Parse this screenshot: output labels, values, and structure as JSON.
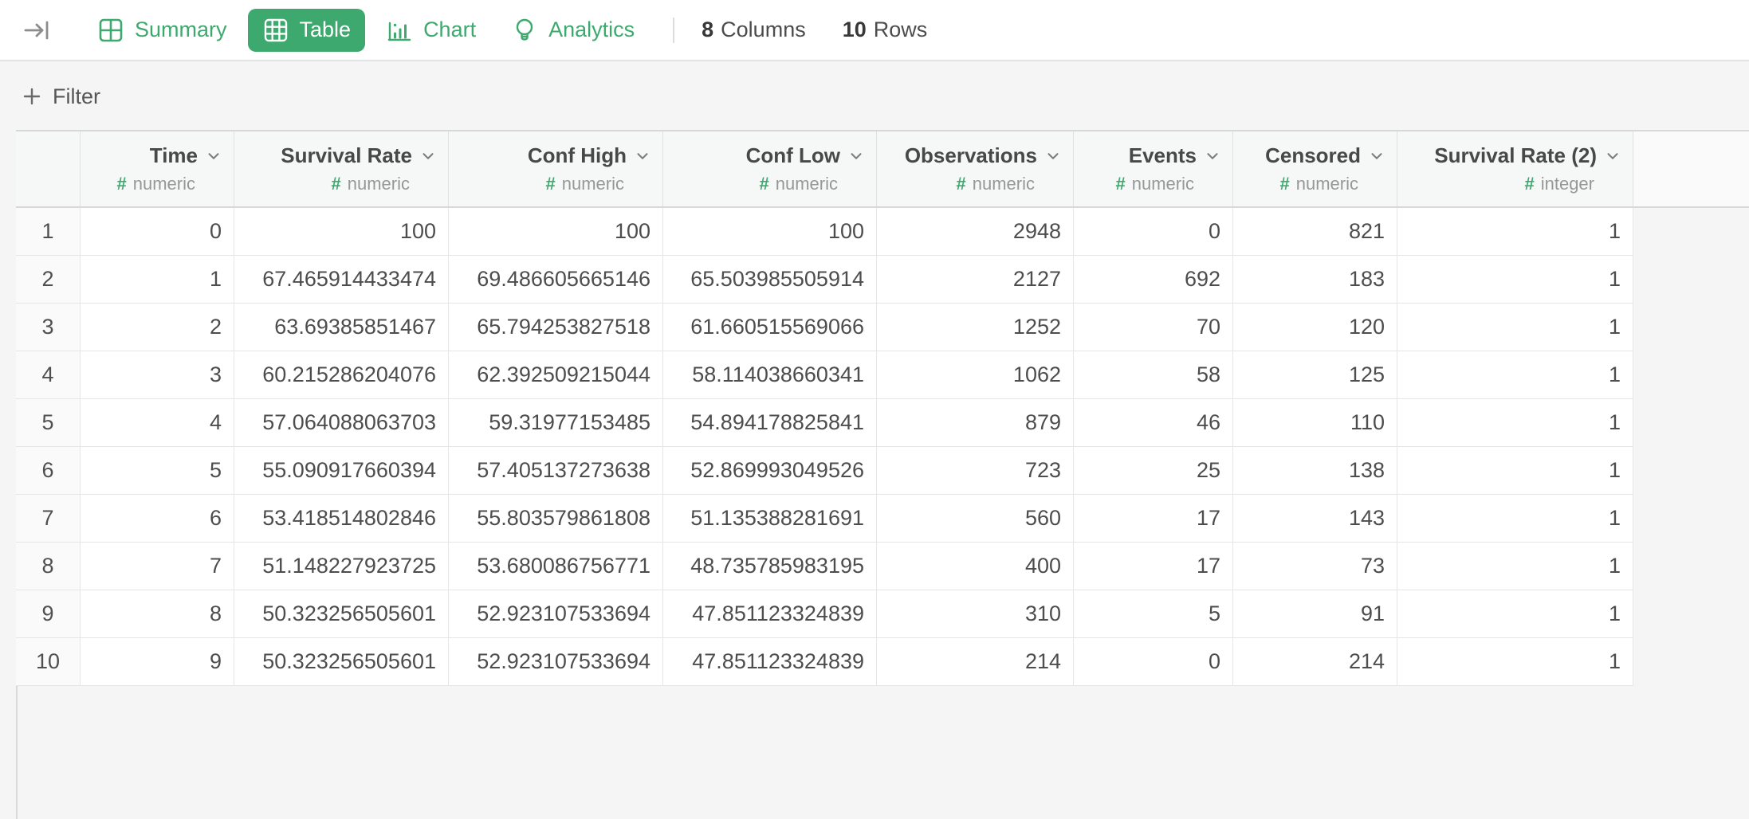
{
  "accent_color": "#3ea96e",
  "toolbar": {
    "tabs": [
      {
        "label": "Summary",
        "icon": "grid-2x2-icon",
        "active": false
      },
      {
        "label": "Table",
        "icon": "grid-3x3-icon",
        "active": true
      },
      {
        "label": "Chart",
        "icon": "bar-chart-icon",
        "active": false
      },
      {
        "label": "Analytics",
        "icon": "lightbulb-icon",
        "active": false
      }
    ],
    "stats": {
      "columns": {
        "value": "8",
        "label": "Columns"
      },
      "rows": {
        "value": "10",
        "label": "Rows"
      }
    }
  },
  "filter": {
    "label": "Filter"
  },
  "table": {
    "columns": [
      {
        "label": "Time",
        "type": "numeric"
      },
      {
        "label": "Survival Rate",
        "type": "numeric"
      },
      {
        "label": "Conf High",
        "type": "numeric"
      },
      {
        "label": "Conf Low",
        "type": "numeric"
      },
      {
        "label": "Observations",
        "type": "numeric"
      },
      {
        "label": "Events",
        "type": "numeric"
      },
      {
        "label": "Censored",
        "type": "numeric"
      },
      {
        "label": "Survival Rate (2)",
        "type": "integer"
      }
    ],
    "rows": [
      {
        "n": "1",
        "cells": [
          "0",
          "100",
          "100",
          "100",
          "2948",
          "0",
          "821",
          "1"
        ]
      },
      {
        "n": "2",
        "cells": [
          "1",
          "67.465914433474",
          "69.486605665146",
          "65.503985505914",
          "2127",
          "692",
          "183",
          "1"
        ]
      },
      {
        "n": "3",
        "cells": [
          "2",
          "63.69385851467",
          "65.794253827518",
          "61.660515569066",
          "1252",
          "70",
          "120",
          "1"
        ]
      },
      {
        "n": "4",
        "cells": [
          "3",
          "60.215286204076",
          "62.392509215044",
          "58.114038660341",
          "1062",
          "58",
          "125",
          "1"
        ]
      },
      {
        "n": "5",
        "cells": [
          "4",
          "57.064088063703",
          "59.31977153485",
          "54.894178825841",
          "879",
          "46",
          "110",
          "1"
        ]
      },
      {
        "n": "6",
        "cells": [
          "5",
          "55.090917660394",
          "57.405137273638",
          "52.869993049526",
          "723",
          "25",
          "138",
          "1"
        ]
      },
      {
        "n": "7",
        "cells": [
          "6",
          "53.418514802846",
          "55.803579861808",
          "51.135388281691",
          "560",
          "17",
          "143",
          "1"
        ]
      },
      {
        "n": "8",
        "cells": [
          "7",
          "51.148227923725",
          "53.680086756771",
          "48.735785983195",
          "400",
          "17",
          "73",
          "1"
        ]
      },
      {
        "n": "9",
        "cells": [
          "8",
          "50.323256505601",
          "52.923107533694",
          "47.851123324839",
          "310",
          "5",
          "91",
          "1"
        ]
      },
      {
        "n": "10",
        "cells": [
          "9",
          "50.323256505601",
          "52.923107533694",
          "47.851123324839",
          "214",
          "0",
          "214",
          "1"
        ]
      }
    ]
  }
}
